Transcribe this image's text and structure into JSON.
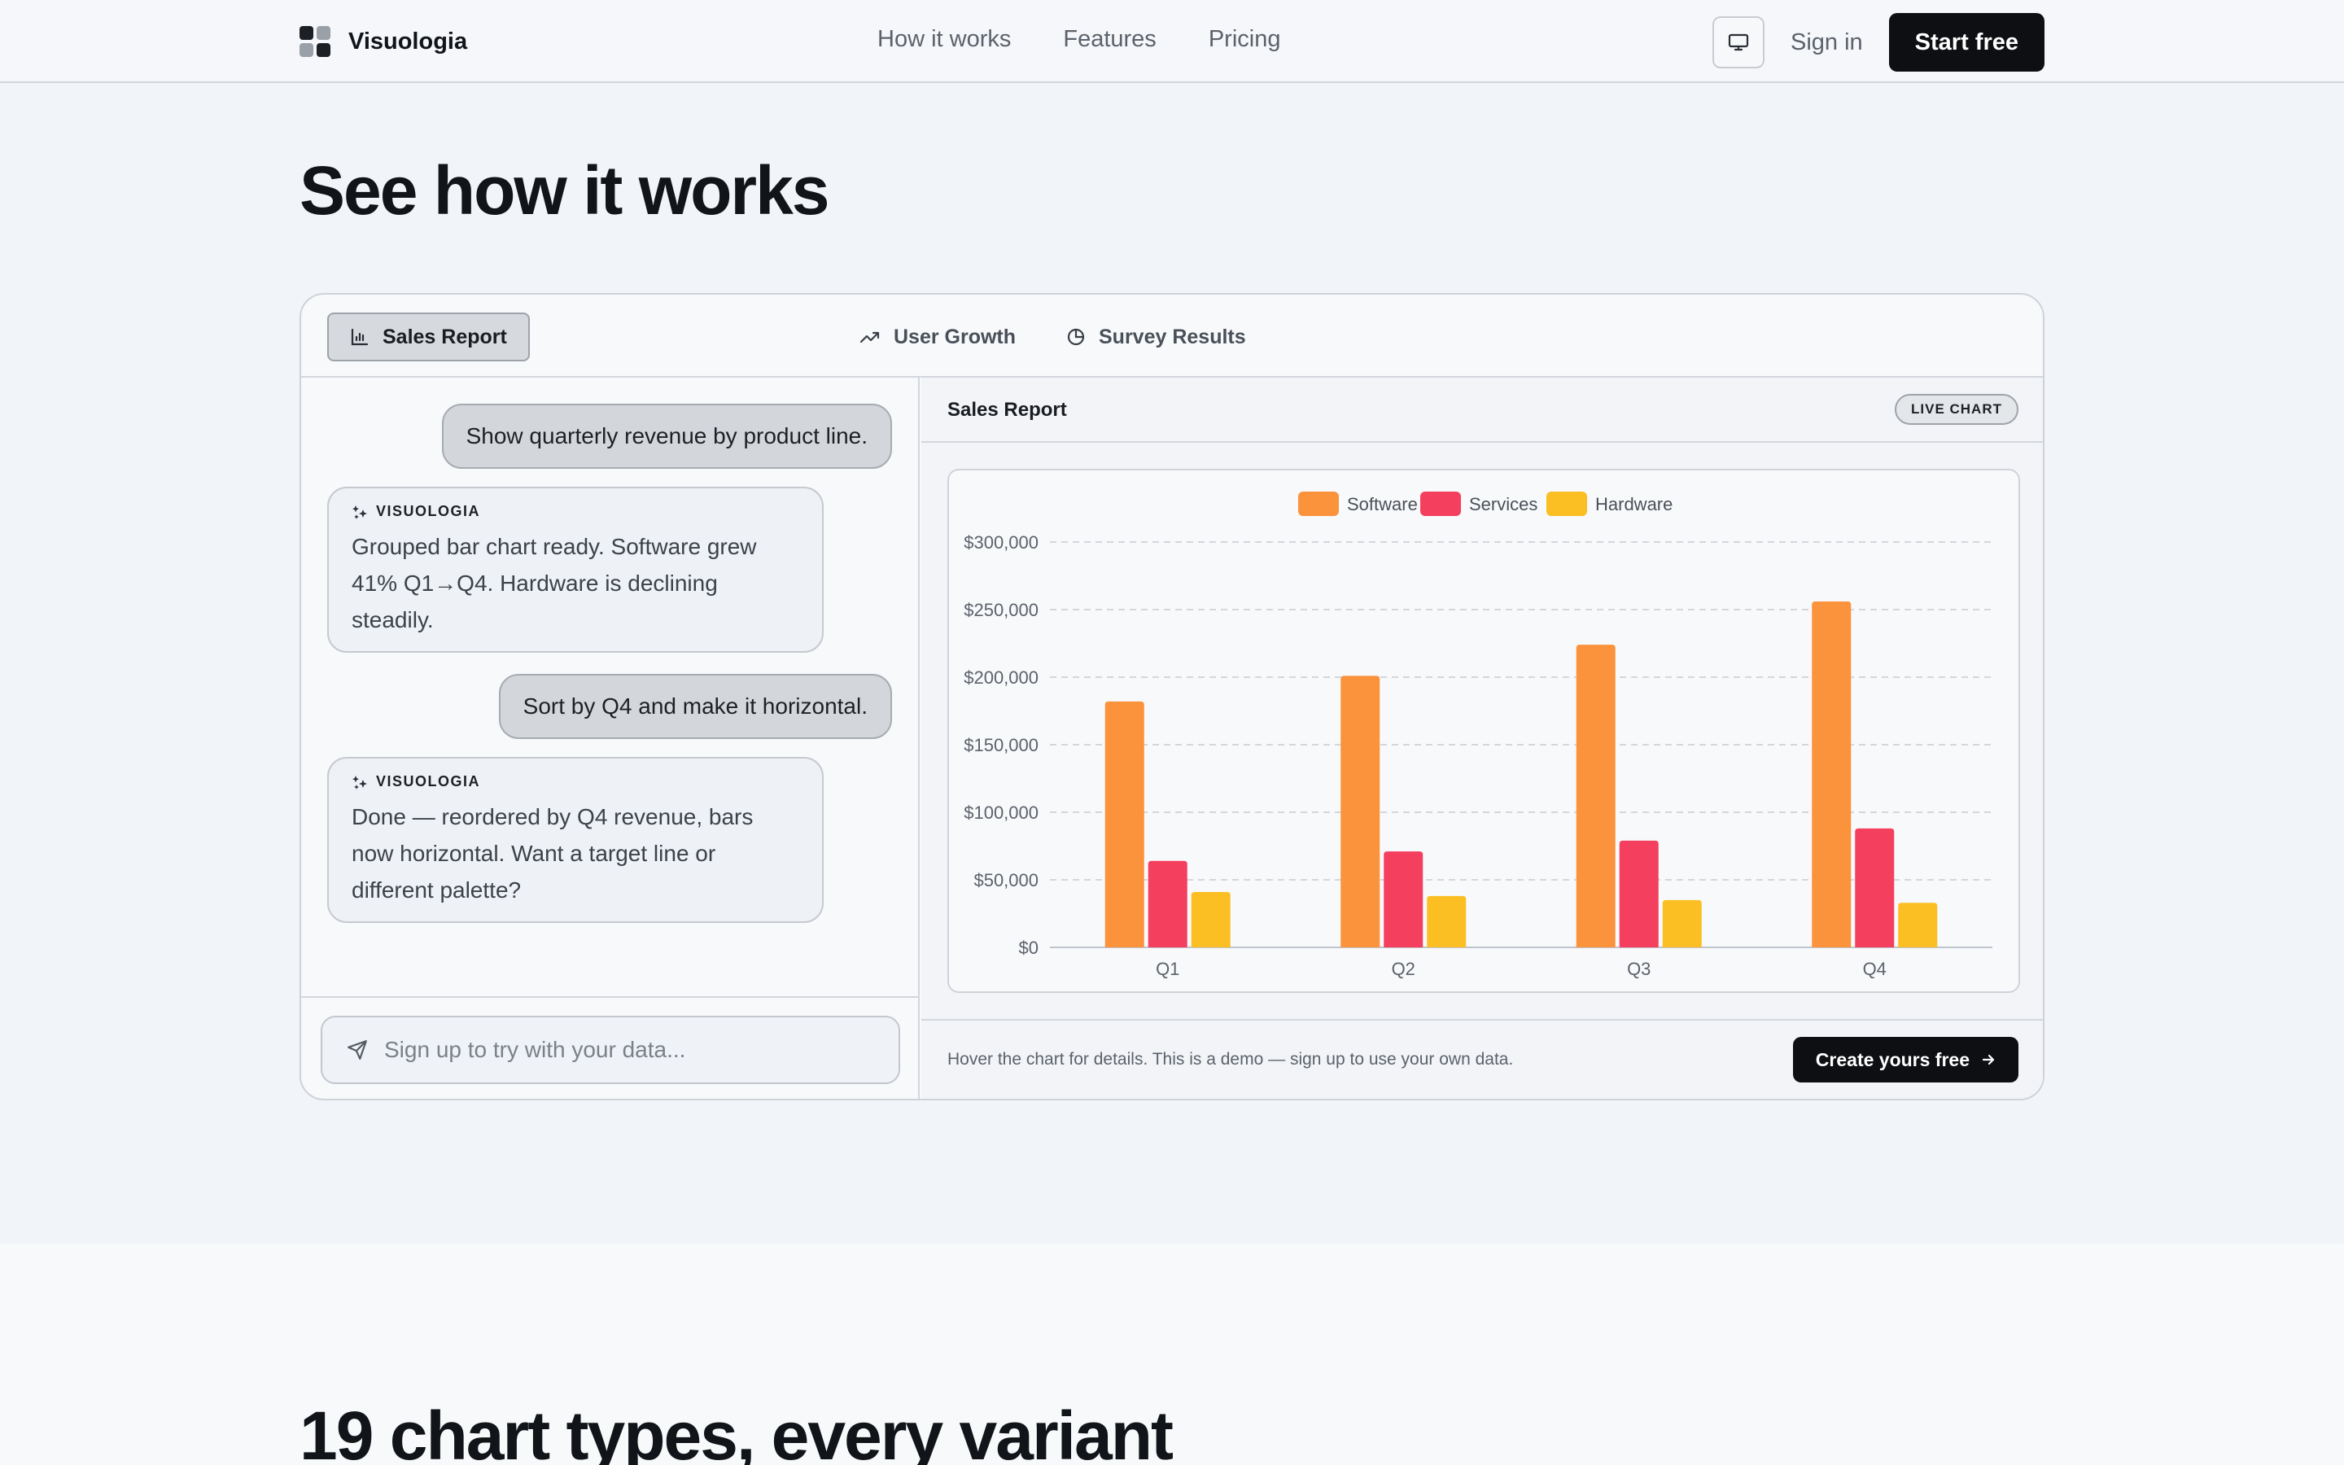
{
  "nav": {
    "brand": "Visuologia",
    "links": [
      "How it works",
      "Features",
      "Pricing"
    ],
    "sign_in": "Sign in",
    "start_free": "Start free"
  },
  "hero": {
    "title": "See how it works"
  },
  "tabs": [
    {
      "label": "Sales Report",
      "icon": "bar-chart-icon",
      "active": true
    },
    {
      "label": "User Growth",
      "icon": "trend-up-icon",
      "active": false
    },
    {
      "label": "Survey Results",
      "icon": "pie-chart-icon",
      "active": false
    }
  ],
  "chat": {
    "messages": [
      {
        "role": "user",
        "text": "Show quarterly revenue by product line."
      },
      {
        "role": "ai",
        "author": "VISUOLOGIA",
        "lines": [
          "Grouped bar chart ready. Software grew",
          "41% Q1→Q4. Hardware is declining",
          "steadily."
        ]
      },
      {
        "role": "user",
        "text": "Sort by Q4 and make it horizontal."
      },
      {
        "role": "ai",
        "author": "VISUOLOGIA",
        "lines": [
          "Done — reordered by Q4 revenue, bars",
          "now horizontal. Want a target line or",
          "different palette?"
        ]
      }
    ],
    "input_placeholder": "Sign up to try with your data..."
  },
  "panel": {
    "title": "Sales Report",
    "badge": "LIVE CHART",
    "footnote": "Hover the chart for details. This is a demo — sign up to use your own data.",
    "cta": "Create yours free"
  },
  "chart_data": {
    "type": "bar",
    "categories": [
      "Q1",
      "Q2",
      "Q3",
      "Q4"
    ],
    "series": [
      {
        "name": "Software",
        "color": "#fb923c",
        "values": [
          182000,
          201000,
          224000,
          256000
        ]
      },
      {
        "name": "Services",
        "color": "#f43f5e",
        "values": [
          64000,
          71000,
          79000,
          88000
        ]
      },
      {
        "name": "Hardware",
        "color": "#fbbf24",
        "values": [
          41000,
          38000,
          35000,
          33000
        ]
      }
    ],
    "ylim": [
      0,
      300000
    ],
    "yticks": [
      0,
      50000,
      100000,
      150000,
      200000,
      250000,
      300000
    ],
    "ytick_labels": [
      "$0",
      "$50,000",
      "$100,000",
      "$150,000",
      "$200,000",
      "$250,000",
      "$300,000"
    ],
    "grid": true,
    "legend": "top-center"
  },
  "lower": {
    "title": "19 chart types, every variant"
  }
}
